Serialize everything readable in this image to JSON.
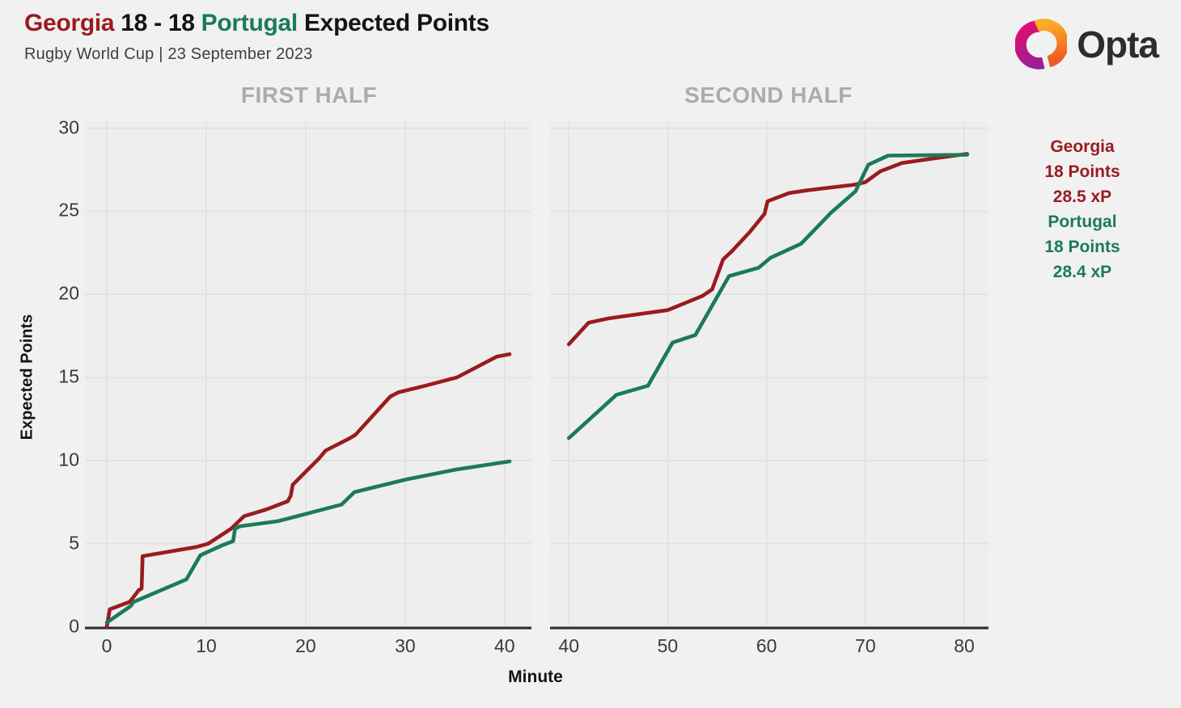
{
  "header": {
    "team_a": "Georgia",
    "score": " 18 - 18 ",
    "team_b": "Portugal",
    "title_suffix": "Expected Points",
    "subtitle": "Rugby World Cup | 23 September 2023"
  },
  "brand": {
    "logo_icon": "opta-logo-icon",
    "name": "Opta"
  },
  "legend": {
    "georgia": {
      "name": "Georgia",
      "points": "18 Points",
      "xp": "28.5 xP"
    },
    "portugal": {
      "name": "Portugal",
      "points": "18 Points",
      "xp": "28.4 xP"
    }
  },
  "colors": {
    "georgia": "#9A1B1F",
    "portugal": "#1B7B57",
    "plot_bg": "#eeeeee",
    "gridline": "#e0e0e0",
    "axis": "#2a2a2a",
    "panel_header": "#acacac"
  },
  "chart_data": {
    "type": "line",
    "xlabel": "Minute",
    "ylabel": "Expected Points",
    "ylim": [
      0,
      30
    ],
    "y_ticks": [
      0,
      5,
      10,
      15,
      20,
      25,
      30
    ],
    "grid": true,
    "legend_position": "right",
    "panels": [
      {
        "title": "FIRST HALF",
        "xlim": [
          -2.2,
          42.7
        ],
        "x_ticks": [
          0,
          10,
          20,
          30,
          40
        ],
        "series": [
          {
            "name": "Georgia",
            "color": "#9A1B1F",
            "points": [
              [
                0,
                0
              ],
              [
                0.3,
                1.05
              ],
              [
                2.3,
                1.5
              ],
              [
                2.7,
                1.8
              ],
              [
                3.2,
                2.2
              ],
              [
                3.5,
                2.3
              ],
              [
                3.6,
                4.25
              ],
              [
                9,
                4.8
              ],
              [
                10.2,
                5
              ],
              [
                12.5,
                5.9
              ],
              [
                13.8,
                6.65
              ],
              [
                16,
                7.05
              ],
              [
                18.2,
                7.55
              ],
              [
                18.5,
                7.9
              ],
              [
                18.7,
                8.55
              ],
              [
                21.3,
                10.1
              ],
              [
                22,
                10.6
              ],
              [
                24.3,
                11.3
              ],
              [
                25,
                11.55
              ],
              [
                28.5,
                13.85
              ],
              [
                29.3,
                14.1
              ],
              [
                32,
                14.5
              ],
              [
                35.2,
                15
              ],
              [
                39.2,
                16.25
              ],
              [
                40.5,
                16.4
              ]
            ]
          },
          {
            "name": "Portugal",
            "color": "#1B7B57",
            "points": [
              [
                0,
                0.25
              ],
              [
                2.4,
                1.25
              ],
              [
                2.7,
                1.5
              ],
              [
                8,
                2.85
              ],
              [
                9.4,
                4.3
              ],
              [
                11.6,
                4.9
              ],
              [
                12.7,
                5.15
              ],
              [
                12.9,
                5.9
              ],
              [
                13.4,
                6.05
              ],
              [
                17.2,
                6.35
              ],
              [
                23.6,
                7.35
              ],
              [
                24.9,
                8.1
              ],
              [
                30,
                8.85
              ],
              [
                35,
                9.45
              ],
              [
                40.5,
                9.95
              ]
            ]
          }
        ]
      },
      {
        "title": "SECOND HALF",
        "xlim": [
          38.1,
          82.45
        ],
        "x_ticks": [
          40,
          50,
          60,
          70,
          80
        ],
        "series": [
          {
            "name": "Georgia",
            "color": "#9A1B1F",
            "points": [
              [
                40,
                17
              ],
              [
                42,
                18.3
              ],
              [
                44,
                18.55
              ],
              [
                50,
                19.05
              ],
              [
                53.5,
                19.9
              ],
              [
                54.5,
                20.3
              ],
              [
                55.6,
                22.1
              ],
              [
                56.5,
                22.6
              ],
              [
                58.3,
                23.75
              ],
              [
                59.8,
                24.85
              ],
              [
                60.1,
                25.6
              ],
              [
                62.3,
                26.1
              ],
              [
                64,
                26.25
              ],
              [
                68.9,
                26.6
              ],
              [
                70,
                26.75
              ],
              [
                71.5,
                27.4
              ],
              [
                73.7,
                27.9
              ],
              [
                76,
                28.1
              ],
              [
                80.3,
                28.45
              ]
            ]
          },
          {
            "name": "Portugal",
            "color": "#1B7B57",
            "points": [
              [
                40,
                11.35
              ],
              [
                44.8,
                13.95
              ],
              [
                48,
                14.5
              ],
              [
                50.5,
                17.1
              ],
              [
                52.8,
                17.55
              ],
              [
                56.2,
                21.1
              ],
              [
                59.2,
                21.6
              ],
              [
                60.4,
                22.2
              ],
              [
                63.5,
                23.05
              ],
              [
                66.5,
                24.9
              ],
              [
                69,
                26.2
              ],
              [
                70.3,
                27.8
              ],
              [
                72.3,
                28.35
              ],
              [
                80.3,
                28.4
              ]
            ]
          }
        ]
      }
    ]
  }
}
